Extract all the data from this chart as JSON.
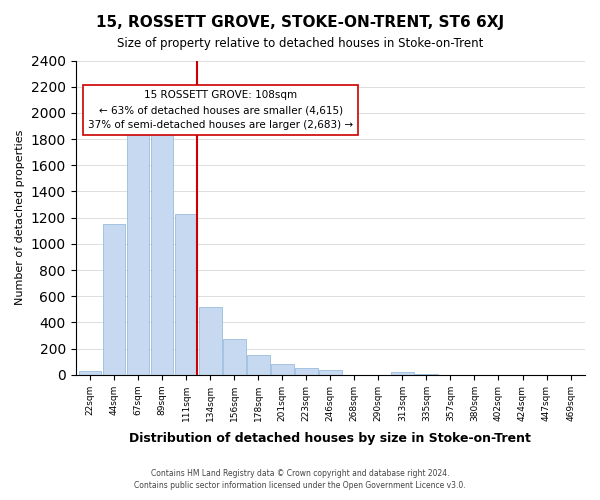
{
  "title": "15, ROSSETT GROVE, STOKE-ON-TRENT, ST6 6XJ",
  "subtitle": "Size of property relative to detached houses in Stoke-on-Trent",
  "xlabel": "Distribution of detached houses by size in Stoke-on-Trent",
  "ylabel": "Number of detached properties",
  "bin_labels": [
    "22sqm",
    "44sqm",
    "67sqm",
    "89sqm",
    "111sqm",
    "134sqm",
    "156sqm",
    "178sqm",
    "201sqm",
    "223sqm",
    "246sqm",
    "268sqm",
    "290sqm",
    "313sqm",
    "335sqm",
    "357sqm",
    "380sqm",
    "402sqm",
    "424sqm",
    "447sqm",
    "469sqm"
  ],
  "bar_heights": [
    30,
    1155,
    1950,
    1840,
    1225,
    520,
    275,
    148,
    80,
    50,
    40,
    0,
    0,
    20,
    5,
    0,
    0,
    0,
    0,
    0,
    0
  ],
  "bar_color": "#c6d9f0",
  "bar_edge_color": "#8ab4d9",
  "vline_x_index": 4,
  "vline_color": "#cc0000",
  "annotation_title": "15 ROSSETT GROVE: 108sqm",
  "annotation_line1": "← 63% of detached houses are smaller (4,615)",
  "annotation_line2": "37% of semi-detached houses are larger (2,683) →",
  "annotation_box_color": "#ffffff",
  "annotation_box_edge": "#cc0000",
  "ylim": [
    0,
    2400
  ],
  "yticks": [
    0,
    200,
    400,
    600,
    800,
    1000,
    1200,
    1400,
    1600,
    1800,
    2000,
    2200,
    2400
  ],
  "footer_line1": "Contains HM Land Registry data © Crown copyright and database right 2024.",
  "footer_line2": "Contains public sector information licensed under the Open Government Licence v3.0."
}
